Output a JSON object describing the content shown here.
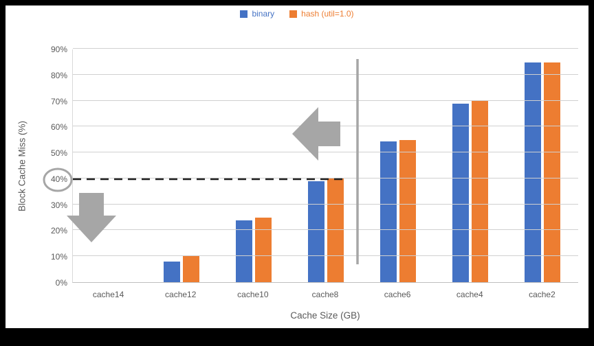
{
  "colors": {
    "page_background": "#000000",
    "chart_background": "#FFFFFF",
    "gridline": "#D0D0D0",
    "axis_text": "#595959",
    "annotation_gray": "#A6A6A6",
    "dashed_line": "#1F1F1F"
  },
  "chart_data": {
    "type": "bar",
    "title": "",
    "categories": [
      "cache14",
      "cache12",
      "cache10",
      "cache8",
      "cache6",
      "cache4",
      "cache2"
    ],
    "series": [
      {
        "name": "binary",
        "color": "#4472C4",
        "values": [
          0,
          8,
          24,
          39,
          54.5,
          69,
          85
        ]
      },
      {
        "name": "hash (util=1.0)",
        "color": "#ED7D31",
        "values": [
          0,
          10,
          25,
          40,
          55,
          70,
          85
        ]
      }
    ],
    "xlabel": "Cache Size (GB)",
    "ylabel": "Block Cache Miss (%)",
    "ylim": [
      0,
      90
    ],
    "ytick_step": 10,
    "ytick_suffix": "%",
    "grid": true,
    "legend_position": "top",
    "annotations": {
      "dashed_line_y_percent": 40,
      "circled_ytick_label": "40%",
      "vertical_line_between": [
        "cache8",
        "cache6"
      ],
      "arrows": [
        {
          "name": "left-arrow",
          "direction": "left"
        },
        {
          "name": "down-arrow",
          "direction": "down"
        }
      ],
      "annotation_color": "#A6A6A6"
    }
  }
}
